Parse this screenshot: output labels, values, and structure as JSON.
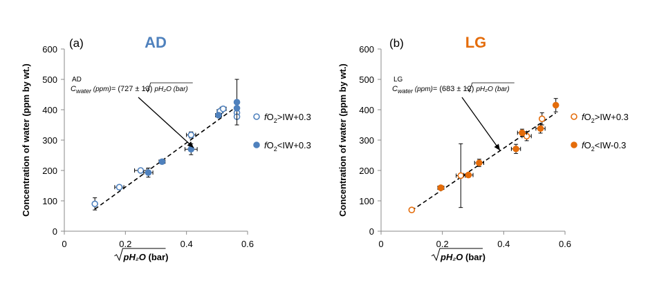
{
  "chart_data": [
    {
      "type": "scatter",
      "panel_label": "(a)",
      "title": "AD",
      "title_color": "#4f81bd",
      "ylabel": "Concentration of water (ppm by wt.)",
      "xlabel": {
        "sqrt": "pH₂O",
        "unit": "(bar)"
      },
      "xlim": [
        0,
        0.6
      ],
      "ylim": [
        0,
        600
      ],
      "x_ticks": [
        "0",
        "0.2",
        "0.4",
        "0.6"
      ],
      "y_ticks": [
        "0",
        "100",
        "200",
        "300",
        "400",
        "500",
        "600"
      ],
      "grid": false,
      "legend_position": "right",
      "color": "#4f81bd",
      "equation": {
        "superscript": "AD",
        "lhs": "C",
        "lhs_subscript": "water",
        "lhs_unit": "(ppm)",
        "coefficient": "= (727 ± 13)",
        "sqrt": "pH₂O (bar)"
      },
      "fit": {
        "slope": 727,
        "x": [
          0.1,
          0.57
        ]
      },
      "series": [
        {
          "name": "fO₂>IW+0.3",
          "name_f": "f",
          "name_o": "O",
          "name_sub": "2",
          "name_rest": ">IW+0.3",
          "marker": "open",
          "points": [
            {
              "x": 0.1,
              "y": 90,
              "yerr": 20,
              "xerr": 0
            },
            {
              "x": 0.18,
              "y": 145,
              "yerr": 7,
              "xerr": 0.015
            },
            {
              "x": 0.25,
              "y": 200,
              "yerr": 5,
              "xerr": 0.02
            },
            {
              "x": 0.415,
              "y": 317,
              "yerr": 10,
              "xerr": 0.015
            },
            {
              "x": 0.51,
              "y": 395,
              "yerr": 7,
              "xerr": 0.01
            },
            {
              "x": 0.52,
              "y": 403,
              "yerr": 6,
              "xerr": 0.01
            },
            {
              "x": 0.565,
              "y": 390,
              "yerr": 0,
              "xerr": 0
            },
            {
              "x": 0.565,
              "y": 377,
              "yerr": 0,
              "xerr": 0
            }
          ]
        },
        {
          "name": "fO₂<IW+0.3",
          "name_f": "f",
          "name_o": "O",
          "name_sub": "2",
          "name_rest": "<IW+0.3",
          "marker": "filled",
          "points": [
            {
              "x": 0.275,
              "y": 193,
              "yerr": 15,
              "xerr": 0.015
            },
            {
              "x": 0.32,
              "y": 229,
              "yerr": 6,
              "xerr": 0.01
            },
            {
              "x": 0.415,
              "y": 270,
              "yerr": 18,
              "xerr": 0.02
            },
            {
              "x": 0.505,
              "y": 382,
              "yerr": 8,
              "xerr": 0.01
            },
            {
              "x": 0.565,
              "y": 425,
              "yerr": 75,
              "xerr": 0
            },
            {
              "x": 0.565,
              "y": 405,
              "yerr": 0,
              "xerr": 0
            }
          ]
        }
      ]
    },
    {
      "type": "scatter",
      "panel_label": "(b)",
      "title": "LG",
      "title_color": "#e46c0a",
      "ylabel": "Concentration of water (ppm by wt.)",
      "xlabel": {
        "sqrt": "pH₂O",
        "unit": "(bar)"
      },
      "xlim": [
        0,
        0.6
      ],
      "ylim": [
        0,
        600
      ],
      "x_ticks": [
        "0",
        "0.2",
        "0.4",
        "0.6"
      ],
      "y_ticks": [
        "0",
        "100",
        "200",
        "300",
        "400",
        "500",
        "600"
      ],
      "grid": false,
      "legend_position": "right",
      "color": "#e46c0a",
      "equation": {
        "superscript": "LG",
        "lhs": "C",
        "lhs_subscript": "water",
        "lhs_unit": "(ppm)",
        "coefficient": "= (683 ± 12)",
        "sqrt": "pH₂O (bar)"
      },
      "fit": {
        "slope": 683,
        "x": [
          0.1,
          0.57
        ]
      },
      "series": [
        {
          "name": "fO₂>IW+0.3",
          "name_f": "f",
          "name_o": "O",
          "name_sub": "2",
          "name_rest": ">IW+0.3",
          "marker": "open",
          "points": [
            {
              "x": 0.1,
              "y": 70,
              "yerr": 0,
              "xerr": 0
            },
            {
              "x": 0.26,
              "y": 183,
              "yerr": 105,
              "xerr": 0.015
            },
            {
              "x": 0.475,
              "y": 313,
              "yerr": 15,
              "xerr": 0.015
            },
            {
              "x": 0.525,
              "y": 370,
              "yerr": 20,
              "xerr": 0
            }
          ]
        },
        {
          "name": "fO₂<IW-0.3",
          "name_f": "f",
          "name_o": "O",
          "name_sub": "2",
          "name_rest": "<IW-0.3",
          "marker": "filled",
          "points": [
            {
              "x": 0.195,
              "y": 143,
              "yerr": 4,
              "xerr": 0.01
            },
            {
              "x": 0.285,
              "y": 185,
              "yerr": 5,
              "xerr": 0.015
            },
            {
              "x": 0.32,
              "y": 225,
              "yerr": 12,
              "xerr": 0.015
            },
            {
              "x": 0.44,
              "y": 271,
              "yerr": 15,
              "xerr": 0.015
            },
            {
              "x": 0.46,
              "y": 324,
              "yerr": 12,
              "xerr": 0.015
            },
            {
              "x": 0.52,
              "y": 338,
              "yerr": 15,
              "xerr": 0.015
            },
            {
              "x": 0.57,
              "y": 415,
              "yerr": 22,
              "xerr": 0
            }
          ]
        }
      ]
    }
  ]
}
